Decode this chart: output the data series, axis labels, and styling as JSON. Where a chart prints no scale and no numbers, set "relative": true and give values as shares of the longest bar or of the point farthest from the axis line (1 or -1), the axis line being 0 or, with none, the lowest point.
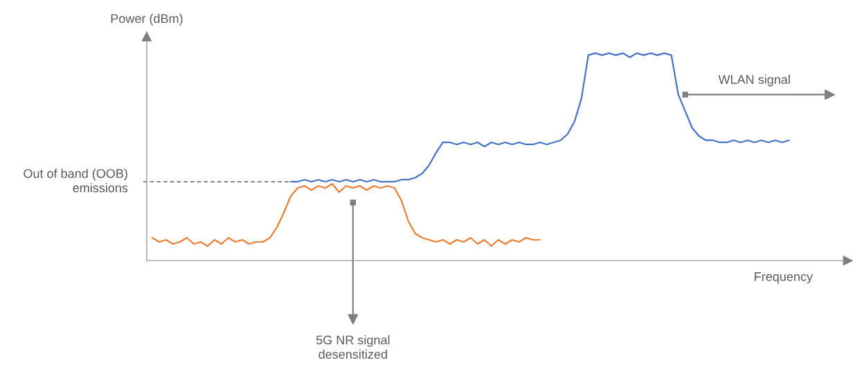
{
  "chart_data": {
    "type": "line",
    "relative": true,
    "xlabel": "Frequency",
    "ylabel": "Power (dBm)",
    "categories": [
      null,
      null,
      null,
      null,
      null,
      null,
      null,
      null,
      null,
      null,
      null,
      null,
      null,
      null,
      null,
      null,
      null,
      null,
      null,
      null,
      null,
      null,
      null,
      null,
      null,
      null,
      null,
      null,
      null,
      null,
      null,
      null,
      null,
      null,
      null,
      null,
      null,
      null,
      null,
      null,
      null,
      null,
      null,
      null,
      null,
      null,
      null,
      null,
      null,
      null,
      null,
      null,
      null,
      null,
      null,
      null,
      null,
      null,
      null,
      null,
      null,
      null,
      null,
      null,
      null,
      null,
      null,
      null,
      null,
      null,
      null,
      null,
      null,
      null,
      null,
      null,
      null,
      null,
      null,
      null,
      null,
      null,
      null,
      null,
      null,
      null,
      null,
      null,
      null,
      null,
      null,
      null,
      null
    ],
    "series": [
      {
        "color": "#ed7d31",
        "values": [
          0.11,
          0.09,
          0.1,
          0.08,
          0.09,
          0.11,
          0.08,
          0.09,
          0.07,
          0.1,
          0.08,
          0.11,
          0.09,
          0.1,
          0.08,
          0.09,
          0.09,
          0.11,
          0.16,
          0.23,
          0.31,
          0.35,
          0.36,
          0.34,
          0.36,
          0.35,
          0.37,
          0.33,
          0.36,
          0.35,
          0.36,
          0.34,
          0.36,
          0.35,
          0.36,
          0.35,
          0.29,
          0.19,
          0.13,
          0.11,
          0.1,
          0.09,
          0.1,
          0.08,
          0.1,
          0.09,
          0.11,
          0.08,
          0.1,
          0.07,
          0.1,
          0.08,
          0.1,
          0.09,
          0.11,
          0.1,
          0.1,
          null,
          null,
          null,
          null,
          null,
          null,
          null,
          null,
          null,
          null,
          null,
          null,
          null,
          null,
          null,
          null,
          null,
          null,
          null,
          null,
          null,
          null,
          null,
          null,
          null,
          null,
          null,
          null,
          null,
          null,
          null,
          null,
          null,
          null,
          null,
          null
        ]
      },
      {
        "color": "#4472c4",
        "values": [
          null,
          null,
          null,
          null,
          null,
          null,
          null,
          null,
          null,
          null,
          null,
          null,
          null,
          null,
          null,
          null,
          null,
          null,
          null,
          null,
          0.38,
          0.38,
          0.39,
          0.38,
          0.39,
          0.38,
          0.39,
          0.38,
          0.39,
          0.38,
          0.39,
          0.38,
          0.39,
          0.38,
          0.38,
          0.38,
          0.39,
          0.39,
          0.4,
          0.42,
          0.46,
          0.52,
          0.57,
          0.57,
          0.56,
          0.57,
          0.56,
          0.57,
          0.55,
          0.57,
          0.56,
          0.57,
          0.56,
          0.57,
          0.56,
          0.56,
          0.57,
          0.56,
          0.57,
          0.58,
          0.61,
          0.67,
          0.78,
          0.99,
          1.0,
          0.99,
          1.0,
          0.99,
          1.0,
          0.98,
          1.0,
          0.99,
          1.0,
          0.99,
          1.0,
          0.99,
          0.8,
          0.72,
          0.64,
          0.6,
          0.58,
          0.58,
          0.57,
          0.57,
          0.58,
          0.57,
          0.58,
          0.57,
          0.58,
          0.57,
          0.58,
          0.57,
          0.58
        ]
      }
    ],
    "ref_lines": [
      {
        "axis": "y",
        "value": 0.38,
        "label": "Out of band (OOB)\nemissions",
        "color": "#595959",
        "line_style": "dashed"
      }
    ],
    "annotations": [
      "WLAN signal",
      "5G NR signal\ndesensitized"
    ],
    "legend": false,
    "grid": false
  }
}
